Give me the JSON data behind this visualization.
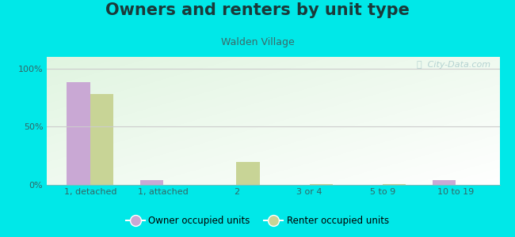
{
  "title": "Owners and renters by unit type",
  "subtitle": "Walden Village",
  "categories": [
    "1, detached",
    "1, attached",
    "2",
    "3 or 4",
    "5 to 9",
    "10 to 19"
  ],
  "owner_values": [
    88,
    4,
    0,
    0,
    0,
    4
  ],
  "renter_values": [
    78,
    0,
    20,
    1,
    0.5,
    0
  ],
  "owner_color": "#c9a8d4",
  "renter_color": "#c8d496",
  "background_color": "#00e8e8",
  "title_color": "#1a3a3a",
  "subtitle_color": "#3a6a6a",
  "tick_color": "#336666",
  "title_fontsize": 15,
  "subtitle_fontsize": 9,
  "ylabel_ticks": [
    "0%",
    "50%",
    "100%"
  ],
  "ytick_vals": [
    0,
    50,
    100
  ],
  "ylim": [
    0,
    110
  ],
  "legend_labels": [
    "Owner occupied units",
    "Renter occupied units"
  ],
  "watermark": "ⓘ  City-Data.com"
}
